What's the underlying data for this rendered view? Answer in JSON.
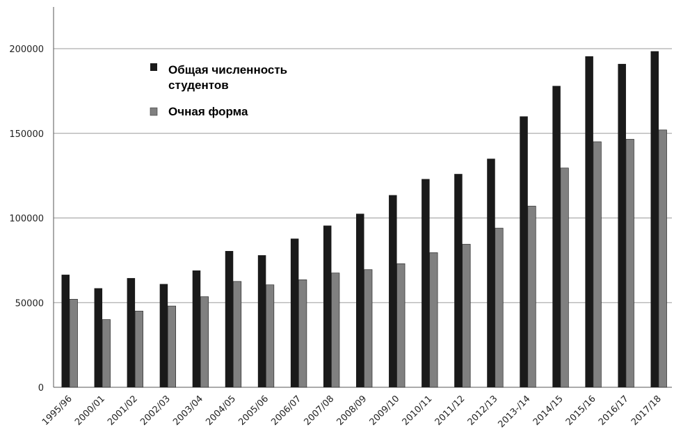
{
  "chart_data": {
    "type": "bar",
    "categories": [
      "1995/96",
      "2000/01",
      "2001/02",
      "2002/03",
      "2003/04",
      "2004/05",
      "2005/06",
      "2006/07",
      "2007/08",
      "2008/09",
      "2009/10",
      "2010/11",
      "2011/12",
      "2012/13",
      "2013-/14",
      "2014/15",
      "2015/16",
      "2016/17",
      "2017/18"
    ],
    "series": [
      {
        "name": "Общая численность студентов",
        "legend_lines": [
          "Общая численность",
          "студентов"
        ],
        "color": "#1a1a1a",
        "values": [
          66500,
          58500,
          64500,
          61000,
          69000,
          80500,
          78000,
          87800,
          95500,
          102500,
          113500,
          123000,
          126000,
          135000,
          160000,
          178000,
          195500,
          191000,
          198500
        ]
      },
      {
        "name": "Очная форма",
        "legend_lines": [
          "Очная форма"
        ],
        "color": "#808080",
        "values": [
          52000,
          40000,
          45000,
          48000,
          53500,
          62500,
          60500,
          63500,
          67500,
          69500,
          73000,
          79500,
          84500,
          94000,
          107000,
          129500,
          145000,
          146500,
          152000
        ]
      }
    ],
    "yticks": [
      0,
      50000,
      100000,
      150000,
      200000
    ],
    "ytick_labels": [
      "0",
      "50000",
      "100000",
      "150000",
      "200000"
    ],
    "ylim": [
      0,
      225000
    ],
    "grid": true,
    "legend_position": "top-left"
  }
}
